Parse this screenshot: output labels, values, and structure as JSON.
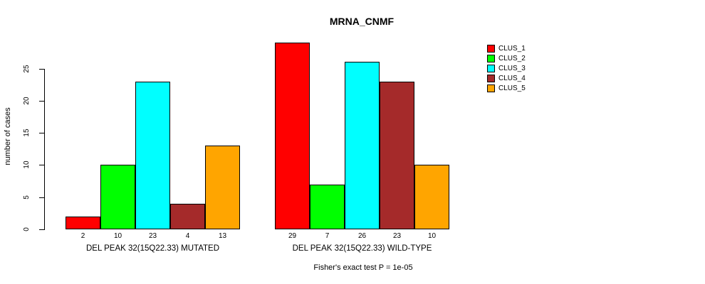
{
  "title": "MRNA_CNMF",
  "ylabel": "number of cases",
  "footer": "Fisher's exact test P = 1e-05",
  "legend": {
    "position": "right",
    "items": [
      {
        "label": "CLUS_1",
        "color": "#FF0000"
      },
      {
        "label": "CLUS_2",
        "color": "#00FF00"
      },
      {
        "label": "CLUS_3",
        "color": "#00FFFF"
      },
      {
        "label": "CLUS_4",
        "color": "#A52A2A"
      },
      {
        "label": "CLUS_5",
        "color": "#FFA500"
      }
    ]
  },
  "chart_data": {
    "type": "bar",
    "title": "MRNA_CNMF",
    "xlabel": "",
    "ylabel": "number of cases",
    "ylim": [
      0,
      29
    ],
    "yticks": [
      0,
      5,
      10,
      15,
      20,
      25
    ],
    "grid": false,
    "legend_position": "right",
    "clusters": [
      "CLUS_1",
      "CLUS_2",
      "CLUS_3",
      "CLUS_4",
      "CLUS_5"
    ],
    "colors": [
      "#FF0000",
      "#00FF00",
      "#00FFFF",
      "#A52A2A",
      "#FFA500"
    ],
    "groups": [
      {
        "label": "DEL PEAK 32(15Q22.33) MUTATED",
        "values": [
          2,
          10,
          23,
          4,
          13
        ]
      },
      {
        "label": "DEL PEAK 32(15Q22.33) WILD-TYPE",
        "values": [
          29,
          7,
          26,
          23,
          10
        ]
      }
    ],
    "annotation": "Fisher's exact test P = 1e-05"
  }
}
